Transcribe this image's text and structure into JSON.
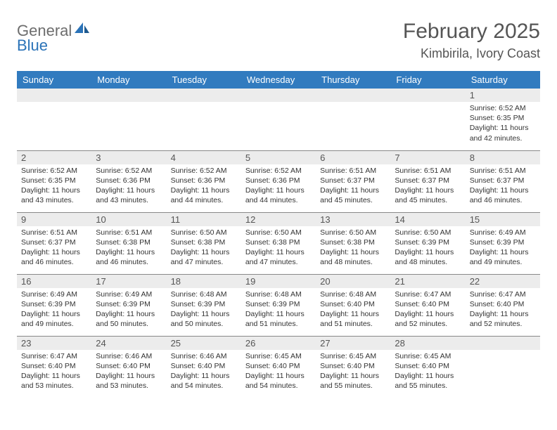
{
  "logo": {
    "word1": "General",
    "word2": "Blue"
  },
  "header": {
    "month_title": "February 2025",
    "location": "Kimbirila, Ivory Coast"
  },
  "colors": {
    "header_bg": "#317bbf",
    "header_text": "#ffffff",
    "daynum_bg": "#ececec",
    "border": "#888888",
    "title_text": "#555555",
    "logo_gray": "#6d6d6d",
    "logo_blue": "#2b73b8"
  },
  "day_labels": [
    "Sunday",
    "Monday",
    "Tuesday",
    "Wednesday",
    "Thursday",
    "Friday",
    "Saturday"
  ],
  "weeks": [
    [
      {
        "day": "",
        "sunrise": "",
        "sunset": "",
        "daylight": ""
      },
      {
        "day": "",
        "sunrise": "",
        "sunset": "",
        "daylight": ""
      },
      {
        "day": "",
        "sunrise": "",
        "sunset": "",
        "daylight": ""
      },
      {
        "day": "",
        "sunrise": "",
        "sunset": "",
        "daylight": ""
      },
      {
        "day": "",
        "sunrise": "",
        "sunset": "",
        "daylight": ""
      },
      {
        "day": "",
        "sunrise": "",
        "sunset": "",
        "daylight": ""
      },
      {
        "day": "1",
        "sunrise": "Sunrise: 6:52 AM",
        "sunset": "Sunset: 6:35 PM",
        "daylight": "Daylight: 11 hours and 42 minutes."
      }
    ],
    [
      {
        "day": "2",
        "sunrise": "Sunrise: 6:52 AM",
        "sunset": "Sunset: 6:35 PM",
        "daylight": "Daylight: 11 hours and 43 minutes."
      },
      {
        "day": "3",
        "sunrise": "Sunrise: 6:52 AM",
        "sunset": "Sunset: 6:36 PM",
        "daylight": "Daylight: 11 hours and 43 minutes."
      },
      {
        "day": "4",
        "sunrise": "Sunrise: 6:52 AM",
        "sunset": "Sunset: 6:36 PM",
        "daylight": "Daylight: 11 hours and 44 minutes."
      },
      {
        "day": "5",
        "sunrise": "Sunrise: 6:52 AM",
        "sunset": "Sunset: 6:36 PM",
        "daylight": "Daylight: 11 hours and 44 minutes."
      },
      {
        "day": "6",
        "sunrise": "Sunrise: 6:51 AM",
        "sunset": "Sunset: 6:37 PM",
        "daylight": "Daylight: 11 hours and 45 minutes."
      },
      {
        "day": "7",
        "sunrise": "Sunrise: 6:51 AM",
        "sunset": "Sunset: 6:37 PM",
        "daylight": "Daylight: 11 hours and 45 minutes."
      },
      {
        "day": "8",
        "sunrise": "Sunrise: 6:51 AM",
        "sunset": "Sunset: 6:37 PM",
        "daylight": "Daylight: 11 hours and 46 minutes."
      }
    ],
    [
      {
        "day": "9",
        "sunrise": "Sunrise: 6:51 AM",
        "sunset": "Sunset: 6:37 PM",
        "daylight": "Daylight: 11 hours and 46 minutes."
      },
      {
        "day": "10",
        "sunrise": "Sunrise: 6:51 AM",
        "sunset": "Sunset: 6:38 PM",
        "daylight": "Daylight: 11 hours and 46 minutes."
      },
      {
        "day": "11",
        "sunrise": "Sunrise: 6:50 AM",
        "sunset": "Sunset: 6:38 PM",
        "daylight": "Daylight: 11 hours and 47 minutes."
      },
      {
        "day": "12",
        "sunrise": "Sunrise: 6:50 AM",
        "sunset": "Sunset: 6:38 PM",
        "daylight": "Daylight: 11 hours and 47 minutes."
      },
      {
        "day": "13",
        "sunrise": "Sunrise: 6:50 AM",
        "sunset": "Sunset: 6:38 PM",
        "daylight": "Daylight: 11 hours and 48 minutes."
      },
      {
        "day": "14",
        "sunrise": "Sunrise: 6:50 AM",
        "sunset": "Sunset: 6:39 PM",
        "daylight": "Daylight: 11 hours and 48 minutes."
      },
      {
        "day": "15",
        "sunrise": "Sunrise: 6:49 AM",
        "sunset": "Sunset: 6:39 PM",
        "daylight": "Daylight: 11 hours and 49 minutes."
      }
    ],
    [
      {
        "day": "16",
        "sunrise": "Sunrise: 6:49 AM",
        "sunset": "Sunset: 6:39 PM",
        "daylight": "Daylight: 11 hours and 49 minutes."
      },
      {
        "day": "17",
        "sunrise": "Sunrise: 6:49 AM",
        "sunset": "Sunset: 6:39 PM",
        "daylight": "Daylight: 11 hours and 50 minutes."
      },
      {
        "day": "18",
        "sunrise": "Sunrise: 6:48 AM",
        "sunset": "Sunset: 6:39 PM",
        "daylight": "Daylight: 11 hours and 50 minutes."
      },
      {
        "day": "19",
        "sunrise": "Sunrise: 6:48 AM",
        "sunset": "Sunset: 6:39 PM",
        "daylight": "Daylight: 11 hours and 51 minutes."
      },
      {
        "day": "20",
        "sunrise": "Sunrise: 6:48 AM",
        "sunset": "Sunset: 6:40 PM",
        "daylight": "Daylight: 11 hours and 51 minutes."
      },
      {
        "day": "21",
        "sunrise": "Sunrise: 6:47 AM",
        "sunset": "Sunset: 6:40 PM",
        "daylight": "Daylight: 11 hours and 52 minutes."
      },
      {
        "day": "22",
        "sunrise": "Sunrise: 6:47 AM",
        "sunset": "Sunset: 6:40 PM",
        "daylight": "Daylight: 11 hours and 52 minutes."
      }
    ],
    [
      {
        "day": "23",
        "sunrise": "Sunrise: 6:47 AM",
        "sunset": "Sunset: 6:40 PM",
        "daylight": "Daylight: 11 hours and 53 minutes."
      },
      {
        "day": "24",
        "sunrise": "Sunrise: 6:46 AM",
        "sunset": "Sunset: 6:40 PM",
        "daylight": "Daylight: 11 hours and 53 minutes."
      },
      {
        "day": "25",
        "sunrise": "Sunrise: 6:46 AM",
        "sunset": "Sunset: 6:40 PM",
        "daylight": "Daylight: 11 hours and 54 minutes."
      },
      {
        "day": "26",
        "sunrise": "Sunrise: 6:45 AM",
        "sunset": "Sunset: 6:40 PM",
        "daylight": "Daylight: 11 hours and 54 minutes."
      },
      {
        "day": "27",
        "sunrise": "Sunrise: 6:45 AM",
        "sunset": "Sunset: 6:40 PM",
        "daylight": "Daylight: 11 hours and 55 minutes."
      },
      {
        "day": "28",
        "sunrise": "Sunrise: 6:45 AM",
        "sunset": "Sunset: 6:40 PM",
        "daylight": "Daylight: 11 hours and 55 minutes."
      },
      {
        "day": "",
        "sunrise": "",
        "sunset": "",
        "daylight": ""
      }
    ]
  ]
}
